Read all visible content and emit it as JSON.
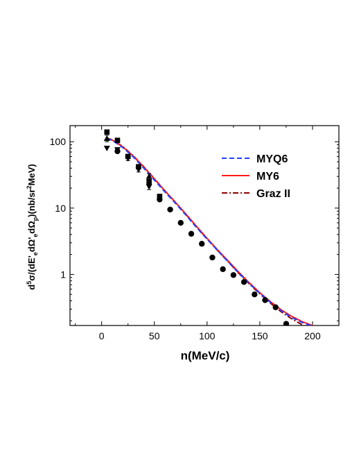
{
  "chart_data": {
    "type": "line",
    "xlabel": "n(MeV/c)",
    "ylabel_parts": [
      "d",
      "5",
      "σ/(dE'",
      "e",
      "dΩ'",
      "e",
      "dΩ",
      "p",
      ")(nb/sr",
      "2",
      "MeV)"
    ],
    "xlim": [
      -30,
      225
    ],
    "ylim": [
      0.17,
      175
    ],
    "yscale": "log",
    "x_ticks": [
      0,
      50,
      100,
      150,
      200
    ],
    "x_tick_labels": [
      "0",
      "50",
      "100",
      "150",
      "200"
    ],
    "y_ticks": [
      1,
      10,
      100
    ],
    "y_tick_labels": [
      "1",
      "10",
      "100"
    ],
    "grid": false,
    "legend_position": "top-right",
    "colors": {
      "MYQ6": "#1f3fff",
      "MY6": "#ff1a1a",
      "GrazII": "#8b0000",
      "data": "#000000"
    },
    "series": [
      {
        "name": "MYQ6",
        "style": "dashed",
        "x": [
          5,
          10,
          20,
          30,
          40,
          50,
          60,
          70,
          80,
          90,
          100,
          110,
          120,
          130,
          140,
          150,
          160,
          170,
          180,
          190,
          200
        ],
        "y": [
          112,
          105,
          82,
          59,
          40,
          26.5,
          17.5,
          11.8,
          7.8,
          5.1,
          3.4,
          2.3,
          1.55,
          1.05,
          0.73,
          0.52,
          0.38,
          0.285,
          0.225,
          0.19,
          0.165
        ]
      },
      {
        "name": "MY6",
        "style": "solid",
        "x": [
          5,
          10,
          20,
          30,
          40,
          50,
          60,
          70,
          80,
          90,
          100,
          110,
          120,
          130,
          140,
          150,
          160,
          170,
          180,
          190,
          200
        ],
        "y": [
          112,
          106,
          84,
          61,
          41.5,
          27.5,
          18.2,
          12.2,
          8.1,
          5.3,
          3.5,
          2.35,
          1.6,
          1.08,
          0.75,
          0.53,
          0.39,
          0.295,
          0.235,
          0.195,
          0.17
        ]
      },
      {
        "name": "Graz II",
        "style": "dash-dot",
        "x": [
          5,
          10,
          20,
          30,
          40,
          50,
          60,
          70,
          80,
          90,
          100,
          110,
          120,
          130,
          140,
          150,
          160,
          170,
          180,
          190,
          200
        ],
        "y": [
          114,
          107,
          85,
          61.5,
          42,
          27.8,
          18.3,
          12.2,
          8.0,
          5.2,
          3.45,
          2.3,
          1.55,
          1.04,
          0.72,
          0.51,
          0.37,
          0.275,
          0.215,
          0.175,
          0.15
        ]
      }
    ],
    "data_points": [
      {
        "x": 5,
        "y": 140,
        "marker": "square"
      },
      {
        "x": 5,
        "y": 112,
        "marker": "triangle-up"
      },
      {
        "x": 5,
        "y": 80,
        "marker": "triangle-down"
      },
      {
        "x": 15,
        "y": 105,
        "marker": "square"
      },
      {
        "x": 15,
        "y": 76,
        "marker": "triangle-down"
      },
      {
        "x": 15,
        "y": 72,
        "marker": "circle"
      },
      {
        "x": 25,
        "y": 60,
        "marker": "square"
      },
      {
        "x": 25,
        "y": 56,
        "marker": "triangle-down"
      },
      {
        "x": 35,
        "y": 42,
        "marker": "square"
      },
      {
        "x": 35,
        "y": 38,
        "marker": "triangle-down"
      },
      {
        "x": 45,
        "y": 30,
        "marker": "triangle-up"
      },
      {
        "x": 45,
        "y": 25,
        "marker": "square"
      },
      {
        "x": 45,
        "y": 21,
        "marker": "triangle-down"
      },
      {
        "x": 55,
        "y": 15,
        "marker": "square"
      },
      {
        "x": 55,
        "y": 13.5,
        "marker": "circle"
      },
      {
        "x": 65,
        "y": 9.5,
        "marker": "circle"
      },
      {
        "x": 75,
        "y": 6.0,
        "marker": "circle"
      },
      {
        "x": 85,
        "y": 4.1,
        "marker": "circle"
      },
      {
        "x": 95,
        "y": 2.9,
        "marker": "circle"
      },
      {
        "x": 105,
        "y": 1.8,
        "marker": "circle"
      },
      {
        "x": 115,
        "y": 1.2,
        "marker": "circle"
      },
      {
        "x": 125,
        "y": 0.98,
        "marker": "circle"
      },
      {
        "x": 135,
        "y": 0.77,
        "marker": "circle"
      },
      {
        "x": 145,
        "y": 0.5,
        "marker": "circle"
      },
      {
        "x": 155,
        "y": 0.41,
        "marker": "circle"
      },
      {
        "x": 165,
        "y": 0.32,
        "marker": "circle"
      },
      {
        "x": 175,
        "y": 0.18,
        "marker": "circle"
      }
    ],
    "error_bars": [
      {
        "x": 45,
        "ylo": 19,
        "yhi": 33
      },
      {
        "x": 35,
        "ylo": 35,
        "yhi": 45
      },
      {
        "x": 25,
        "ylo": 52,
        "yhi": 64
      },
      {
        "x": 5,
        "ylo": 100,
        "yhi": 125
      }
    ]
  }
}
